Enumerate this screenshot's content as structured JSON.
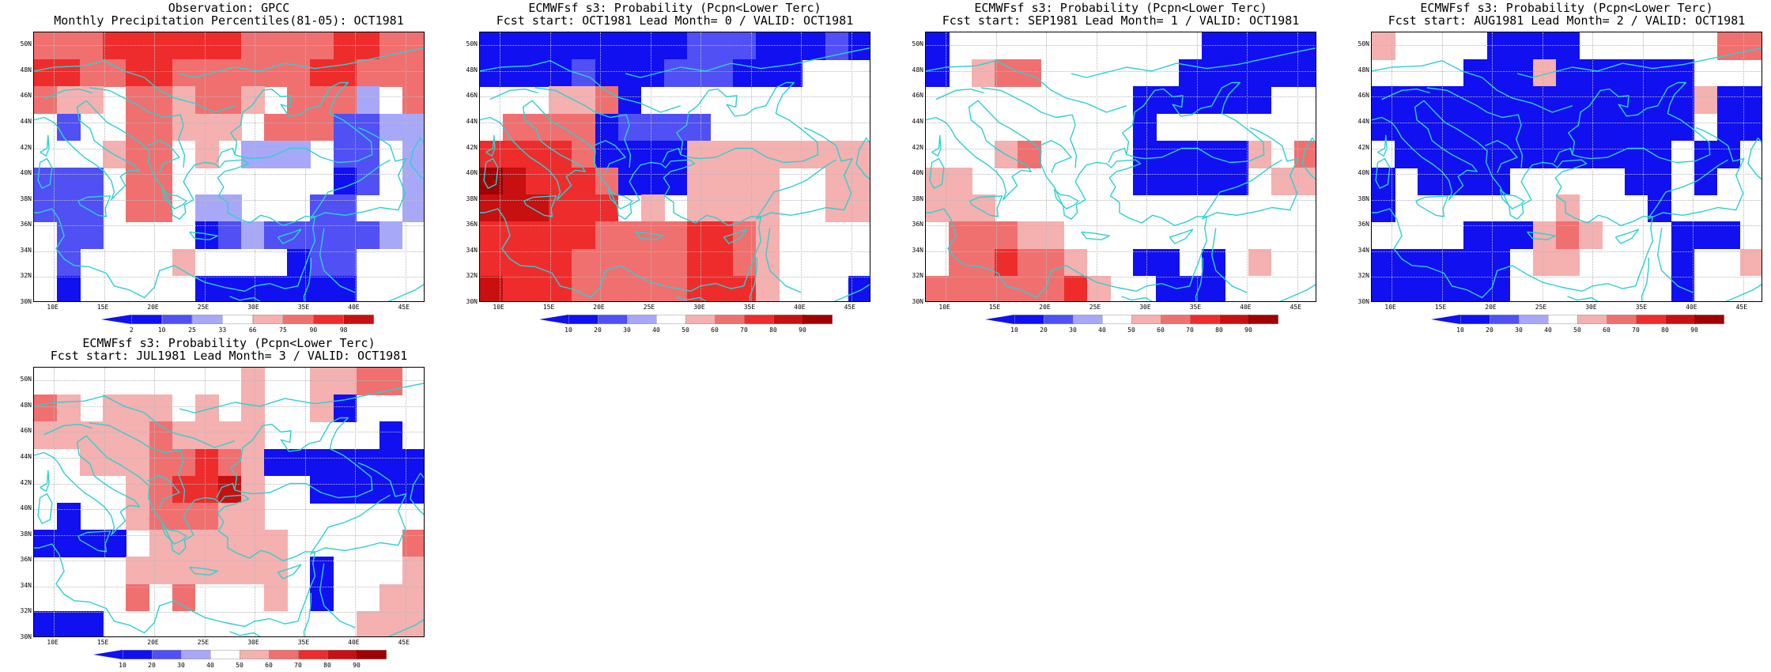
{
  "x_ticks": [
    "10E",
    "15E",
    "20E",
    "25E",
    "30E",
    "35E",
    "40E",
    "45E"
  ],
  "y_ticks": [
    "50N",
    "48N",
    "46N",
    "44N",
    "42N",
    "40N",
    "38N",
    "36N",
    "34N",
    "32N",
    "30N"
  ],
  "colors": {
    "b3": "#1010f0",
    "b2": "#5050f5",
    "b1": "#a8a8f8",
    "w": "#ffffff",
    "r1": "#f5b0b0",
    "r2": "#f07070",
    "r3": "#ee2c2c",
    "r4": "#c81010",
    "r5": "#a00000",
    "coast": "#2ed0d0"
  },
  "scales": {
    "obs": {
      "segments": [
        "b3",
        "b2",
        "b1",
        "w",
        "r1",
        "r2",
        "r3",
        "r4"
      ],
      "labels": [
        "2",
        "10",
        "25",
        "33",
        "66",
        "75",
        "90",
        "98"
      ]
    },
    "prob": {
      "segments": [
        "b3",
        "b2",
        "b1",
        "w",
        "r1",
        "r2",
        "r3",
        "r4",
        "r5"
      ],
      "labels": [
        "10",
        "20",
        "30",
        "40",
        "50",
        "60",
        "70",
        "80",
        "90"
      ]
    }
  },
  "panels": [
    {
      "title1": "Observation: GPCC",
      "title2": "Monthly Precipitation Percentiles(81-05): OCT1981",
      "scale": "obs",
      "grid": [
        "r2 r2 r2 r3 r3 r3 r3 r3 r3 r2 r2 r2 r2 r3 r3 r2 r2",
        "r3 r3 r2 r2 r3 r3 r2 r2 r2 r2 r2 r2 r3 r3 r2 r2 r2",
        "r2 r1 r1 w r2 r2 r1 r2 r2 r1 w r2 r2 r2 b1 w r2",
        "w b2 w w r2 r2 r1 r1 r1 w r2 r2 r2 b2 b2 b1 b1",
        "w w w r1 r2 r2 w r1 w b1 b1 b1 w b2 b2 w b1",
        "b2 b2 b2 w r2 r2 w w w w w w w b3 b2 w b1",
        "b2 b2 b2 w r2 r2 w b1 b1 w w w b2 b2 w w b1",
        "w b2 b2 w w w w b3 b2 b1 b2 b2 b2 b2 b2 b1 w",
        "w b2 w w w w r1 w w w w b3 b2 b2 w w w",
        "w b3 w w w w w b3 b3 b3 b3 b3 b3 b3 w w w"
      ]
    },
    {
      "title1": "ECMWFsf s3: Probability (Pcpn<Lower Terc)",
      "title2": "Fcst start: OCT1981  Lead Month= 0 / VALID: OCT1981",
      "scale": "prob",
      "grid": [
        "b3 b3 b3 b3 b3 b3 b3 b3 b3 b2 b2 b2 b3 b3 b3 b2 b3",
        "b3 b3 b3 b3 b2 b3 b3 b3 b2 b2 b2 b3 b3 b3 w w w",
        "w w w r1 r1 r2 b3 w w w w w w w w w w",
        "w r2 r2 r2 r2 b3 b2 b2 b2 b2 w w w w w w w",
        "r3 r3 r3 r3 r2 b3 b3 b3 b3 r1 r1 r1 r1 r1 r1 r1 r1",
        "r5 r4 r3 r3 r3 r2 b3 b3 b3 r1 r1 r1 r1 w w r1 r1",
        "r4 r4 r4 r3 r3 r3 w r1 w r1 r1 r1 r1 w w r1 r1",
        "r3 r3 r3 r3 r3 r2 r2 r2 r2 r3 r3 r2 r1 w w w w",
        "r3 r3 r3 r3 r2 r2 r2 r2 r2 r3 r3 r2 r1 w w w w",
        "r4 r3 r3 r3 r2 r2 r2 r2 r2 r3 r3 r3 r1 w w w b3"
      ]
    },
    {
      "title1": "ECMWFsf s3: Probability (Pcpn<Lower Terc)",
      "title2": "Fcst start: SEP1981  Lead Month= 1 / VALID: OCT1981",
      "scale": "prob",
      "grid": [
        "b3 w w w w w w w w w w w b3 b3 b3 b3 b3",
        "b3 w r1 r2 r2 w w w w w w b3 b3 b3 b3 b3 b3",
        "w w w w w w w w w b3 b3 b3 b3 b3 b3 w w",
        "w w w w w w w w w b3 w w w w w w w",
        "w w w r1 r2 w w w w b3 b3 b3 b3 b3 r1 w r2",
        "r1 r1 w w w w w w w b3 b3 b3 b3 b3 w r1 r1",
        "r1 r1 r1 w w w w w w w w w w w w w w",
        "w r2 r2 r2 r1 r1 w w w w w w w w w w w",
        "w r2 r2 r3 r2 r2 r1 w w b3 b3 w b3 w r1 w w",
        "r2 r2 r2 r2 r2 r2 r3 r1 w w b3 b3 b3 w w w w"
      ]
    },
    {
      "title1": "ECMWFsf s3: Probability (Pcpn<Lower Terc)",
      "title2": "Fcst start: AUG1981  Lead Month= 2 / VALID: OCT1981",
      "scale": "prob",
      "grid": [
        "r1 w w w w b3 b3 b3 b3 w w w w w w r2 r2",
        "w w w w b3 b3 b3 r1 b3 b3 b3 b3 b3 b3 w w w",
        "b3 b3 b3 b3 b3 b3 b3 b3 b3 b3 b3 b3 b3 b3 r1 b3 b3",
        "b3 b3 b3 b3 b3 b3 b3 b3 b3 b3 b3 b3 b3 b3 w b3 b3",
        "w b3 b3 b3 b3 b3 b3 b3 b3 b3 b3 b3 b3 w b3 b3 w",
        "b3 w b3 b3 b3 b3 w w w w w b3 b3 w b3 w w",
        "b3 w w w w w w w r1 w w w b3 w w w w",
        "w w w w b3 b3 b3 r1 r2 r1 w w w b3 b3 b3 w",
        "b3 b3 b3 b3 b3 b3 w r1 r1 w w w w b3 w w r1",
        "b3 b3 b3 b3 b3 b3 w w w w w w w b3 w w w"
      ]
    },
    {
      "title1": "ECMWFsf s3: Probability (Pcpn<Lower Terc)",
      "title2": "Fcst start: JUL1981  Lead Month= 3 / VALID: OCT1981",
      "scale": "prob",
      "grid": [
        "w w w w w w w w w r1 w w r1 r1 r2 r2 w",
        "r2 r1 w r1 r1 r1 w r1 w r1 w w r1 b3 w w w",
        "r1 r1 r1 r1 r1 r2 r1 r1 r1 r1 w w w w w b3 w",
        "w w r1 r1 r1 r2 r2 r3 r2 r1 b3 b3 b3 b3 b3 b3 b3",
        "w w w w r1 r2 r3 r3 r4 r1 w w b3 b3 b3 b3 b3",
        "w b3 w w r1 r2 r2 r2 r1 r1 w w w w w w w",
        "b3 b3 b3 b3 w r1 r1 r1 r1 r1 r1 w w w w w r2",
        "w w w w r1 r1 r1 r1 r1 r1 r1 w b3 w w w r1",
        "w w w w r2 w r2 w w w r1 w b3 w w r1 r1",
        "b3 b3 b3 w w w w w w w w w w w r1 r1 r1"
      ]
    }
  ]
}
